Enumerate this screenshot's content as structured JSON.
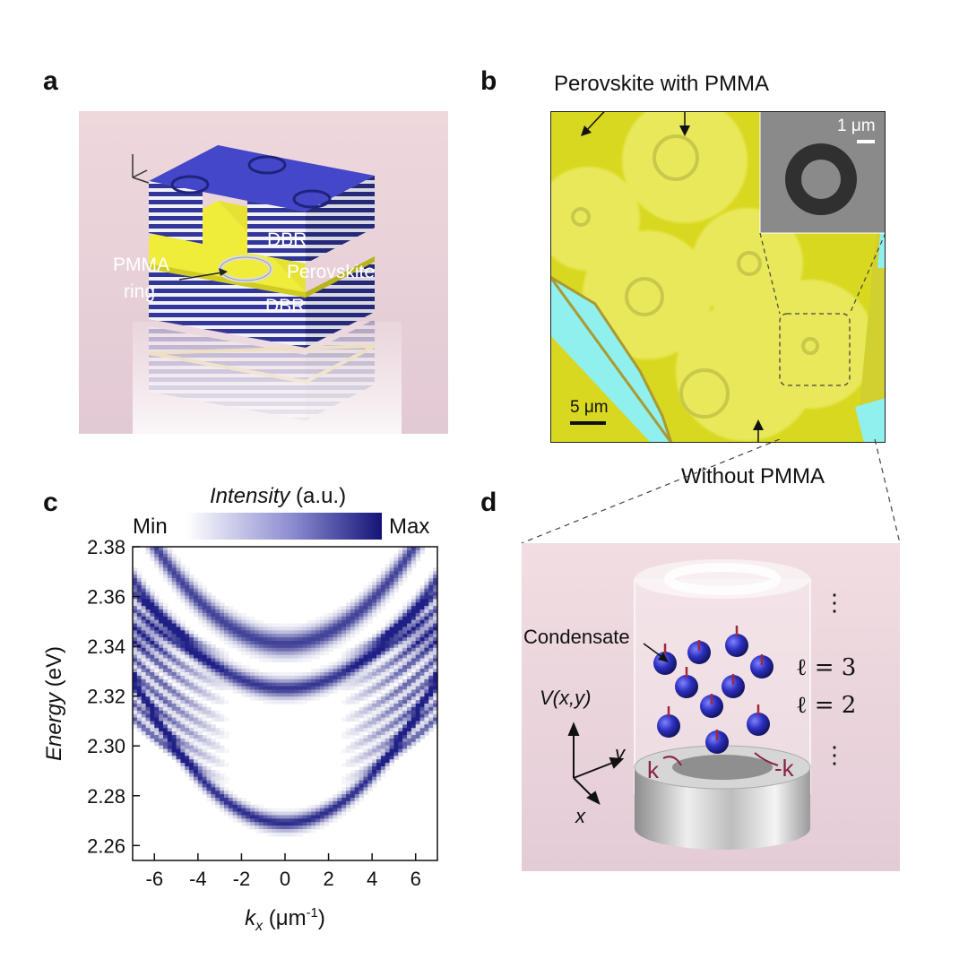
{
  "panels": {
    "a": {
      "letter": "a",
      "labels": {
        "dbr_top": "DBR",
        "perovskite": "Perovskite",
        "dbr_bottom": "DBR",
        "pmma_line1": "PMMA",
        "pmma_line2": "ring"
      }
    },
    "b": {
      "letter": "b",
      "top_label": "Perovskite with PMMA",
      "bottom_label": "Without PMMA",
      "scalebar_main": "5 μm",
      "scalebar_inset": "1 μm"
    },
    "c": {
      "letter": "c",
      "colorbar_title": "Intensity",
      "colorbar_unit": " (a.u.)",
      "colorbar_min": "Min",
      "colorbar_max": "Max"
    },
    "d": {
      "letter": "d",
      "condensate": "Condensate",
      "potential": "V(x,y)",
      "axis_x": "x",
      "axis_y": "y",
      "l3": "ℓ = 3",
      "l2": "ℓ = 2",
      "k_left": "k",
      "k_right": "-k",
      "dots": "⋮"
    }
  },
  "colors": {
    "perovskite": "#e3e22a",
    "dbr_blue": "#3a3dc4",
    "map_blue": "#1f1f86",
    "glass": "#8ff0ee"
  },
  "chart_data": {
    "type": "heatmap",
    "ylabel": "Energy (eV)",
    "xlabel": "k_x (μm-1)",
    "xticks": [
      "-6",
      "-4",
      "-2",
      "0",
      "2",
      "4",
      "6"
    ],
    "yticks": [
      "2.38",
      "2.36",
      "2.34",
      "2.32",
      "2.30",
      "2.28",
      "2.26"
    ],
    "xlim": [
      -7,
      7
    ],
    "ylim": [
      2.254,
      2.38
    ],
    "colorbar": [
      "Min",
      "Max"
    ],
    "bands": [
      {
        "e0": 2.341,
        "curvature": 0.0011,
        "width": 0.0045,
        "strength": 0.85
      },
      {
        "e0": 2.323,
        "curvature": 0.0009,
        "width": 0.0035,
        "strength": 0.9
      },
      {
        "e0": 2.269,
        "curvature": 0.0012,
        "width": 0.003,
        "strength": 0.95
      }
    ],
    "side_fringes": [
      2.332,
      2.326,
      2.319,
      2.313,
      2.306,
      2.3,
      2.294,
      2.288,
      2.282
    ]
  }
}
